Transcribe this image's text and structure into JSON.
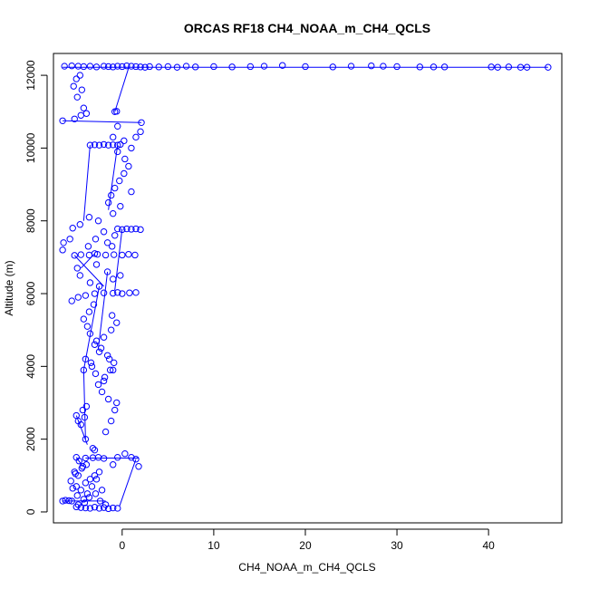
{
  "chart_data": {
    "type": "scatter",
    "title": "ORCAS RF18 CH4_NOAA_m_CH4_QCLS",
    "xlabel": "CH4_NOAA_m_CH4_QCLS",
    "ylabel": "Altitude (m)",
    "xlim": [
      -7.5,
      48
    ],
    "ylim": [
      -300,
      12600
    ],
    "xticks": [
      0,
      10,
      20,
      30,
      40
    ],
    "yticks": [
      0,
      2000,
      4000,
      6000,
      8000,
      10000,
      12000
    ],
    "grid": false,
    "legend": "none",
    "point_style": "open-circle",
    "color": "#0000ff",
    "series": [
      {
        "points": [
          [
            -0.5,
            100
          ],
          [
            -1.0,
            110
          ],
          [
            -1.5,
            90
          ],
          [
            -2.0,
            120
          ],
          [
            -2.5,
            100
          ],
          [
            -3.0,
            130
          ],
          [
            -3.5,
            100
          ],
          [
            -4.0,
            110
          ],
          [
            -4.5,
            120
          ],
          [
            -5.0,
            140
          ],
          [
            -5.5,
            300
          ],
          [
            -6.2,
            320
          ],
          [
            -6.5,
            300
          ],
          [
            -5.8,
            310
          ],
          [
            -4.8,
            200
          ],
          [
            -4.2,
            350
          ],
          [
            -3.8,
            500
          ],
          [
            -4.5,
            600
          ],
          [
            -5.0,
            700
          ],
          [
            -4.0,
            800
          ],
          [
            -3.5,
            900
          ],
          [
            -4.8,
            1000
          ],
          [
            -5.2,
            1100
          ],
          [
            -4.4,
            1200
          ],
          [
            -3.9,
            1300
          ],
          [
            -4.7,
            1400
          ],
          [
            -5.0,
            1500
          ],
          [
            -4.0,
            1480
          ],
          [
            -3.2,
            1490
          ],
          [
            -2.6,
            1500
          ],
          [
            -2.0,
            1470
          ],
          [
            -3.0,
            1000
          ],
          [
            -2.5,
            1100
          ],
          [
            -2.8,
            900
          ],
          [
            -3.3,
            700
          ],
          [
            -2.2,
            600
          ],
          [
            -2.9,
            500
          ],
          [
            -3.6,
            400
          ],
          [
            -2.4,
            300
          ],
          [
            -1.8,
            200
          ],
          [
            -4.1,
            250
          ],
          [
            -4.9,
            450
          ],
          [
            -5.4,
            650
          ],
          [
            -5.6,
            850
          ],
          [
            -5.1,
            1050
          ],
          [
            -4.3,
            1250
          ],
          [
            -1.0,
            1300
          ],
          [
            -0.5,
            1500
          ],
          [
            0.3,
            1600
          ],
          [
            1.0,
            1500
          ],
          [
            1.5,
            1450
          ],
          [
            1.8,
            1250
          ],
          [
            -3.0,
            1700
          ],
          [
            -3.2,
            1750
          ],
          [
            -4.0,
            2000
          ],
          [
            -4.5,
            2400
          ],
          [
            -5.0,
            2650
          ],
          [
            -4.3,
            2800
          ],
          [
            -4.8,
            2500
          ],
          [
            -4.1,
            2600
          ],
          [
            -3.9,
            2900
          ],
          [
            -1.8,
            2200
          ],
          [
            -1.2,
            2500
          ],
          [
            -0.8,
            2800
          ],
          [
            -0.6,
            3000
          ],
          [
            -1.5,
            3100
          ],
          [
            -2.2,
            3300
          ],
          [
            -2.6,
            3500
          ],
          [
            -1.9,
            3700
          ],
          [
            -1.3,
            3900
          ],
          [
            -0.9,
            4100
          ],
          [
            -1.6,
            4300
          ],
          [
            -2.3,
            4500
          ],
          [
            -2.8,
            4700
          ],
          [
            -3.5,
            4900
          ],
          [
            -3.8,
            5100
          ],
          [
            -4.2,
            5300
          ],
          [
            -3.6,
            5500
          ],
          [
            -3.1,
            5700
          ],
          [
            -2.0,
            3600
          ],
          [
            -1.0,
            3900
          ],
          [
            -1.4,
            4200
          ],
          [
            -2.5,
            4400
          ],
          [
            -3.0,
            4600
          ],
          [
            -2.0,
            4800
          ],
          [
            -1.2,
            5000
          ],
          [
            -0.6,
            5200
          ],
          [
            -1.1,
            5400
          ],
          [
            -4.2,
            3900
          ],
          [
            -4.0,
            4200
          ],
          [
            -3.4,
            4100
          ],
          [
            -2.9,
            3800
          ],
          [
            -3.3,
            4000
          ],
          [
            -5.5,
            5800
          ],
          [
            -4.8,
            5900
          ],
          [
            -4.0,
            5950
          ],
          [
            -3.0,
            6000
          ],
          [
            -2.0,
            6020
          ],
          [
            -1.0,
            6010
          ],
          [
            0.0,
            6000
          ],
          [
            0.8,
            6020
          ],
          [
            1.5,
            6030
          ],
          [
            -0.5,
            6030
          ],
          [
            -2.5,
            6200
          ],
          [
            -3.5,
            6300
          ],
          [
            -4.6,
            6500
          ],
          [
            -4.9,
            6700
          ],
          [
            -2.8,
            6800
          ],
          [
            -1.6,
            6600
          ],
          [
            -1.0,
            6400
          ],
          [
            -0.2,
            6500
          ],
          [
            -5.2,
            7050
          ],
          [
            -4.5,
            7070
          ],
          [
            -3.6,
            7060
          ],
          [
            -2.7,
            7080
          ],
          [
            -1.8,
            7060
          ],
          [
            -0.9,
            7070
          ],
          [
            0.0,
            7060
          ],
          [
            0.7,
            7080
          ],
          [
            1.4,
            7060
          ],
          [
            -3.0,
            7100
          ],
          [
            -6.5,
            7200
          ],
          [
            -6.4,
            7400
          ],
          [
            -5.7,
            7500
          ],
          [
            -5.4,
            7800
          ],
          [
            -4.6,
            7900
          ],
          [
            -3.6,
            8100
          ],
          [
            -2.6,
            8000
          ],
          [
            -2.0,
            7700
          ],
          [
            -1.6,
            7400
          ],
          [
            -1.1,
            7300
          ],
          [
            -0.8,
            7600
          ],
          [
            -2.9,
            7500
          ],
          [
            -3.7,
            7300
          ],
          [
            -0.5,
            7780
          ],
          [
            0.0,
            7760
          ],
          [
            0.5,
            7780
          ],
          [
            1.0,
            7770
          ],
          [
            1.5,
            7780
          ],
          [
            2.0,
            7760
          ],
          [
            -1.0,
            8200
          ],
          [
            -1.5,
            8500
          ],
          [
            -1.2,
            8700
          ],
          [
            -0.8,
            8900
          ],
          [
            -0.3,
            9100
          ],
          [
            0.2,
            9300
          ],
          [
            0.7,
            9500
          ],
          [
            0.3,
            9700
          ],
          [
            -0.5,
            9900
          ],
          [
            1.0,
            8800
          ],
          [
            -0.2,
            8400
          ],
          [
            -3.5,
            10080
          ],
          [
            -3.0,
            10090
          ],
          [
            -2.5,
            10080
          ],
          [
            -2.0,
            10100
          ],
          [
            -1.5,
            10080
          ],
          [
            -1.0,
            10090
          ],
          [
            -0.5,
            10080
          ],
          [
            -0.2,
            10100
          ],
          [
            -1.0,
            10300
          ],
          [
            -0.5,
            10600
          ],
          [
            0.2,
            10200
          ],
          [
            1.0,
            10000
          ],
          [
            1.5,
            10300
          ],
          [
            2.0,
            10450
          ],
          [
            2.1,
            10700
          ],
          [
            -6.5,
            10750
          ],
          [
            -5.2,
            10800
          ],
          [
            -4.5,
            10900
          ],
          [
            -3.9,
            10950
          ],
          [
            -4.2,
            11100
          ],
          [
            -4.9,
            11400
          ],
          [
            -5.3,
            11700
          ],
          [
            -5.0,
            11900
          ],
          [
            -4.6,
            12000
          ],
          [
            -4.4,
            11600
          ],
          [
            -0.8,
            11000
          ],
          [
            -0.6,
            11010
          ],
          [
            -6.3,
            12250
          ],
          [
            -5.5,
            12260
          ],
          [
            -4.8,
            12250
          ],
          [
            -4.2,
            12240
          ],
          [
            -3.5,
            12250
          ],
          [
            -2.8,
            12230
          ],
          [
            -2.0,
            12250
          ],
          [
            -1.5,
            12240
          ],
          [
            -1.0,
            12230
          ],
          [
            -0.5,
            12250
          ],
          [
            0.0,
            12240
          ],
          [
            0.5,
            12260
          ],
          [
            1.0,
            12250
          ],
          [
            1.5,
            12240
          ],
          [
            2.0,
            12230
          ],
          [
            2.5,
            12220
          ],
          [
            3.0,
            12240
          ],
          [
            4.0,
            12230
          ],
          [
            5.0,
            12240
          ],
          [
            6.0,
            12220
          ],
          [
            7.0,
            12250
          ],
          [
            8.0,
            12230
          ],
          [
            10.0,
            12240
          ],
          [
            12.0,
            12230
          ],
          [
            14.0,
            12240
          ],
          [
            15.5,
            12250
          ],
          [
            17.5,
            12270
          ],
          [
            20.0,
            12240
          ],
          [
            23.0,
            12230
          ],
          [
            25.0,
            12250
          ],
          [
            27.2,
            12260
          ],
          [
            28.5,
            12250
          ],
          [
            30.0,
            12240
          ],
          [
            32.5,
            12230
          ],
          [
            34.0,
            12230
          ],
          [
            35.2,
            12230
          ],
          [
            40.3,
            12230
          ],
          [
            41.0,
            12220
          ],
          [
            42.2,
            12230
          ],
          [
            43.5,
            12220
          ],
          [
            44.2,
            12220
          ],
          [
            46.5,
            12220
          ]
        ],
        "line_segments": [
          [
            [
              -6.5,
              12220
            ],
            [
              46.5,
              12220
            ]
          ],
          [
            [
              0.7,
              12200
            ],
            [
              -0.8,
              11000
            ]
          ],
          [
            [
              -6.5,
              10750
            ],
            [
              2.1,
              10700
            ]
          ],
          [
            [
              -3.5,
              10080
            ],
            [
              -4.2,
              8000
            ]
          ],
          [
            [
              -0.5,
              10080
            ],
            [
              -1.5,
              8300
            ]
          ],
          [
            [
              0.0,
              7780
            ],
            [
              -0.8,
              6100
            ]
          ],
          [
            [
              -3.0,
              7100
            ],
            [
              -4.5,
              6700
            ]
          ],
          [
            [
              -5.2,
              7050
            ],
            [
              -2.0,
              6200
            ]
          ],
          [
            [
              -2.5,
              6200
            ],
            [
              -4.2,
              3900
            ]
          ],
          [
            [
              -1.6,
              6600
            ],
            [
              -2.6,
              4500
            ]
          ],
          [
            [
              -4.2,
              3900
            ],
            [
              -4.0,
              2000
            ]
          ],
          [
            [
              -5.0,
              2650
            ],
            [
              -3.8,
              1850
            ]
          ],
          [
            [
              -4.0,
              1480
            ],
            [
              1.8,
              1480
            ]
          ],
          [
            [
              1.5,
              1450
            ],
            [
              -0.3,
              150
            ]
          ],
          [
            [
              -6.5,
              300
            ],
            [
              -1.8,
              300
            ]
          ],
          [
            [
              -5.0,
              1500
            ],
            [
              -4.3,
              1250
            ]
          ]
        ]
      }
    ]
  }
}
